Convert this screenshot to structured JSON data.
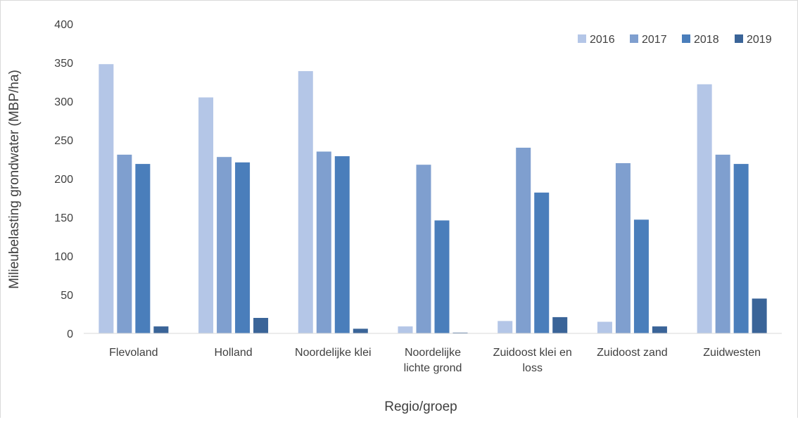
{
  "chart_data": {
    "type": "bar",
    "categories": [
      [
        "Flevoland"
      ],
      [
        "Holland"
      ],
      [
        "Noordelijke klei"
      ],
      [
        "Noordelijke",
        "lichte grond"
      ],
      [
        "Zuidoost klei en",
        "loss"
      ],
      [
        "Zuidoost zand"
      ],
      [
        "Zuidwesten"
      ]
    ],
    "series": [
      {
        "name": "2016",
        "color": "#b4c6e7",
        "values": [
          348,
          305,
          339,
          9,
          16,
          15,
          322
        ]
      },
      {
        "name": "2017",
        "color": "#7f9fcf",
        "values": [
          231,
          228,
          235,
          218,
          240,
          220,
          231
        ]
      },
      {
        "name": "2018",
        "color": "#4a7ebb",
        "values": [
          219,
          221,
          229,
          146,
          182,
          147,
          219
        ]
      },
      {
        "name": "2019",
        "color": "#3a6498",
        "values": [
          9,
          20,
          6,
          1,
          21,
          9,
          45
        ]
      }
    ],
    "xlabel": "Regio/groep",
    "ylabel": "Milieubelasting grondwater (MBP/ha)",
    "ylim": [
      0,
      400
    ],
    "yticks": [
      0,
      50,
      100,
      150,
      200,
      250,
      300,
      350,
      400
    ],
    "grid": false,
    "legend_position": "top-right"
  }
}
